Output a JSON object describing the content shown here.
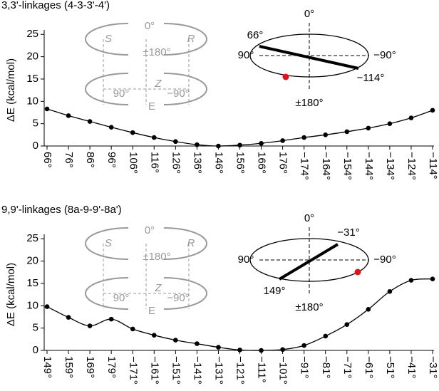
{
  "chart_data": [
    {
      "type": "line",
      "title": "3,3'-linkages (4-3-3'-4')",
      "y_label": "ΔE (kcal/mol)",
      "categories": [
        "66°",
        "76°",
        "86°",
        "96°",
        "106°",
        "116°",
        "126°",
        "136°",
        "146°",
        "156°",
        "166°",
        "176°",
        "−174°",
        "−164°",
        "−154°",
        "−144°",
        "−134°",
        "−124°",
        "−114°"
      ],
      "values": [
        8.3,
        6.8,
        5.5,
        4.2,
        3.0,
        1.9,
        1.0,
        0.3,
        0,
        0.2,
        0.6,
        1.2,
        1.9,
        2.5,
        3.2,
        4.0,
        5.0,
        6.3,
        8.0
      ],
      "color": "#000000",
      "highlight_index": 8,
      "highlight_color": "#e0141e",
      "ylim": [
        0,
        26
      ],
      "yticks": [
        0,
        5,
        10,
        15,
        20,
        25
      ],
      "inset_cylinder": [
        "S",
        "0°",
        "R",
        "±180°",
        "90°",
        "Z",
        "−90°",
        "E"
      ],
      "inset_dial": {
        "axis_labels": [
          "0°",
          "90°",
          "−90°",
          "±180°"
        ],
        "bar_ends": [
          "66°",
          "−114°"
        ]
      }
    },
    {
      "type": "line",
      "title": "9,9'-linkages (8a-9-9'-8a')",
      "y_label": "ΔE (kcal/mol)",
      "categories": [
        "149°",
        "159°",
        "169°",
        "179°",
        "−171°",
        "−161°",
        "−151°",
        "−141°",
        "−131°",
        "−121°",
        "−111°",
        "−101°",
        "−91°",
        "−81°",
        "−71°",
        "−61°",
        "−51°",
        "−41°",
        "−31°"
      ],
      "values": [
        9.8,
        7.4,
        5.5,
        7.0,
        4.8,
        3.4,
        2.3,
        1.5,
        0.7,
        0.1,
        0,
        0.2,
        1.1,
        3.2,
        5.8,
        9.2,
        13.2,
        15.7,
        16.0
      ],
      "color": "#000000",
      "highlight_index": 10,
      "highlight_color": "#e0141e",
      "ylim": [
        0,
        26
      ],
      "yticks": [
        0,
        5,
        10,
        15,
        20,
        25
      ],
      "inset_cylinder": [
        "S",
        "0°",
        "R",
        "±180°",
        "90°",
        "Z",
        "−90°",
        "E"
      ],
      "inset_dial": {
        "axis_labels": [
          "0°",
          "90°",
          "−90°",
          "±180°"
        ],
        "bar_ends": [
          "−31°",
          "149°"
        ]
      }
    }
  ]
}
